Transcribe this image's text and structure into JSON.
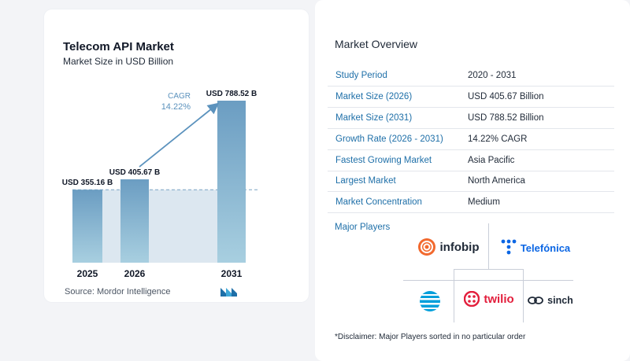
{
  "chart_header": {
    "title": "Telecom API Market",
    "subtitle": "Market Size in USD Billion",
    "source": "Source:  Mordor Intelligence"
  },
  "chart_data": {
    "type": "bar",
    "title": "Telecom API Market",
    "subtitle": "Market Size in USD Billion",
    "categories": [
      "2025",
      "2026",
      "2031"
    ],
    "values": [
      355.16,
      405.67,
      788.52
    ],
    "value_labels": [
      "USD 355.16 B",
      "USD 405.67 B",
      "USD 788.52 B"
    ],
    "ylabel": "",
    "xlabel": "",
    "ylim": [
      0,
      788.52
    ],
    "cagr_label": "CAGR",
    "cagr_value": "14.22%",
    "bar_color": "#6b9dc2",
    "bar_color_light": "#a8cfe0",
    "baseline_fill": "#dce7f0"
  },
  "overview": {
    "title": "Market Overview",
    "rows": [
      {
        "key": "Study Period",
        "value": "2020 - 2031"
      },
      {
        "key": "Market Size (2026)",
        "value": "USD 405.67 Billion"
      },
      {
        "key": "Market Size (2031)",
        "value": "USD 788.52 Billion"
      },
      {
        "key": "Growth Rate (2026 - 2031)",
        "value": "14.22% CAGR"
      },
      {
        "key": "Fastest Growing Market",
        "value": "Asia Pacific"
      },
      {
        "key": "Largest Market",
        "value": "North America"
      },
      {
        "key": "Market Concentration",
        "value": "Medium"
      }
    ]
  },
  "players": {
    "title": "Major Players",
    "logos": {
      "infobip": "infobip",
      "telefonica": "Telefónica",
      "att": "at&t-globe-icon",
      "twilio": "twilio",
      "sinch": "sinch"
    }
  },
  "disclaimer": "*Disclaimer: Major Players sorted in no particular order",
  "colors": {
    "accent_blue": "#1e6fa8",
    "infobip_orange": "#f2692e",
    "telefonica_blue": "#0b66e4",
    "twilio_red": "#e31e3c",
    "att_blue": "#009fdb"
  }
}
